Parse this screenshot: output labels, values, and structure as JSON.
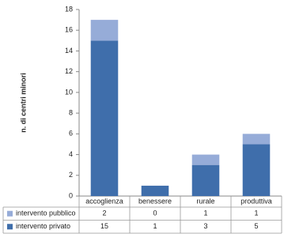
{
  "chart_data": {
    "type": "bar",
    "stacked": true,
    "y_label": "n. di centri minori",
    "categories": [
      "accoglienza",
      "benessere",
      "rurale",
      "produttiva"
    ],
    "series": [
      {
        "name": "intervento privato",
        "color": "#3f6eab",
        "values": [
          15,
          1,
          3,
          5
        ]
      },
      {
        "name": "intervento pubblico",
        "color": "#96acd8",
        "values": [
          2,
          0,
          1,
          1
        ]
      }
    ],
    "ylim": [
      0,
      18
    ],
    "yticks": [
      0,
      2,
      4,
      6,
      8,
      10,
      12,
      14,
      16,
      18
    ],
    "grid": false
  }
}
